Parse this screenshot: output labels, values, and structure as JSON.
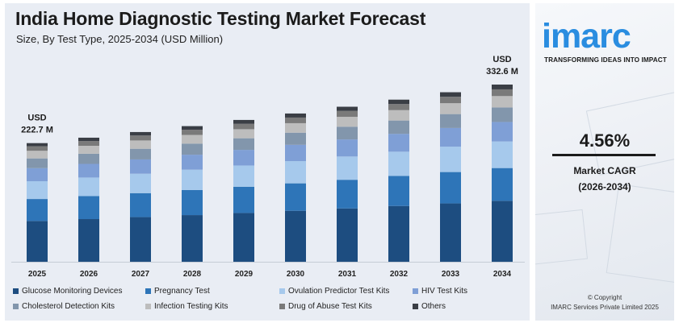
{
  "header": {
    "title": "India Home Diagnostic Testing Market Forecast",
    "subtitle": "Size, By Test Type, 2025-2034 (USD Million)"
  },
  "branding": {
    "logo_text": "imarc",
    "tagline": "TRANSFORMING IDEAS INTO IMPACT",
    "cagr_value": "4.56%",
    "cagr_label": "Market CAGR",
    "cagr_period": "(2026-2034)",
    "copyright": "© Copyright",
    "company": "IMARC Services Private Limited 2025"
  },
  "colors": {
    "panel_bg": "#e9edf4",
    "brand_blue": "#2a8de0",
    "text": "#1b1b1b"
  },
  "chart_data": {
    "type": "bar",
    "stacked": true,
    "title": "India Home Diagnostic Testing Market Forecast",
    "subtitle": "Size, By Test Type, 2025-2034 (USD Million)",
    "categories": [
      "2025",
      "2026",
      "2027",
      "2028",
      "2029",
      "2030",
      "2031",
      "2032",
      "2033",
      "2034"
    ],
    "totals": [
      222.7,
      232.9,
      243.5,
      254.6,
      266.2,
      278.3,
      291.0,
      304.3,
      318.2,
      332.6
    ],
    "annotations": [
      {
        "category": "2025",
        "line1": "USD",
        "line2": "222.7 M"
      },
      {
        "category": "2034",
        "line1": "USD",
        "line2": "332.6 M"
      }
    ],
    "legend_position": "bottom",
    "grid": false,
    "series": [
      {
        "name": "Glucose Monitoring Devices",
        "color": "#1d4d80",
        "values": [
          76.6,
          80.1,
          83.8,
          87.6,
          91.6,
          95.7,
          100.1,
          104.7,
          109.5,
          114.4
        ]
      },
      {
        "name": "Pregnancy Test",
        "color": "#2e75b8",
        "values": [
          41.2,
          43.1,
          45.0,
          47.1,
          49.2,
          51.5,
          53.8,
          56.3,
          58.9,
          61.5
        ]
      },
      {
        "name": "Ovulation Predictor Test Kits",
        "color": "#a6c9ec",
        "values": [
          33.4,
          34.9,
          36.5,
          38.2,
          39.9,
          41.7,
          43.7,
          45.6,
          47.7,
          49.9
        ]
      },
      {
        "name": "HIV Test Kits",
        "color": "#7f9fd6",
        "values": [
          24.5,
          25.6,
          26.8,
          28.0,
          29.3,
          30.6,
          32.0,
          33.5,
          35.0,
          36.6
        ]
      },
      {
        "name": "Cholesterol Detection Kits",
        "color": "#8296ac",
        "values": [
          18.3,
          19.1,
          20.0,
          20.9,
          21.8,
          22.8,
          23.9,
          25.0,
          26.1,
          27.3
        ]
      },
      {
        "name": "Infection Testing Kits",
        "color": "#bdbdbd",
        "values": [
          14.3,
          14.9,
          15.6,
          16.3,
          17.0,
          17.8,
          18.6,
          19.5,
          20.4,
          21.3
        ]
      },
      {
        "name": "Drug of Abuse Test Kits",
        "color": "#7a7a7a",
        "values": [
          8.5,
          8.9,
          9.3,
          9.7,
          10.1,
          10.6,
          11.1,
          11.6,
          12.1,
          12.6
        ]
      },
      {
        "name": "Others",
        "color": "#3a3e45",
        "values": [
          5.9,
          6.3,
          6.5,
          6.8,
          7.3,
          7.6,
          7.8,
          8.1,
          8.5,
          9.0
        ]
      }
    ]
  }
}
